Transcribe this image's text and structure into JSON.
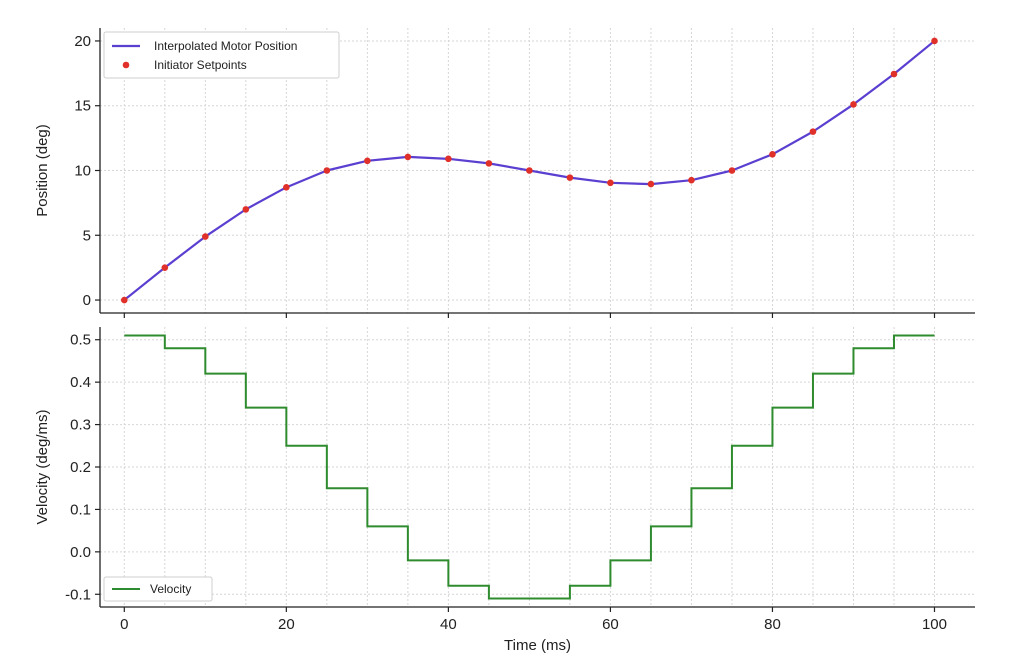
{
  "chart_data": [
    {
      "type": "line",
      "xlabel": "",
      "ylabel": "Position (deg)",
      "xlim": [
        -3,
        105
      ],
      "ylim": [
        -1,
        21
      ],
      "xticks": [
        0,
        20,
        40,
        60,
        80,
        100
      ],
      "yticks": [
        0,
        5,
        10,
        15,
        20
      ],
      "grid": true,
      "legend_position": "top-left",
      "series": [
        {
          "name": "Interpolated Motor Position",
          "kind": "line",
          "color": "#5b3fd0",
          "x": [
            0,
            5,
            10,
            15,
            20,
            25,
            30,
            35,
            40,
            45,
            50,
            55,
            60,
            65,
            70,
            75,
            80,
            85,
            90,
            95,
            100
          ],
          "y": [
            0,
            2.5,
            4.9,
            7.0,
            8.7,
            10.0,
            10.75,
            11.05,
            10.9,
            10.55,
            10.0,
            9.45,
            9.05,
            8.95,
            9.25,
            10.0,
            11.25,
            13.0,
            15.1,
            17.45,
            20.0
          ]
        },
        {
          "name": "Initiator Setpoints",
          "kind": "scatter",
          "color": "#e0302a",
          "x": [
            0,
            5,
            10,
            15,
            20,
            25,
            30,
            35,
            40,
            45,
            50,
            55,
            60,
            65,
            70,
            75,
            80,
            85,
            90,
            95,
            100
          ],
          "y": [
            0,
            2.5,
            4.9,
            7.0,
            8.7,
            10.0,
            10.75,
            11.05,
            10.9,
            10.55,
            10.0,
            9.45,
            9.05,
            8.95,
            9.25,
            10.0,
            11.25,
            13.0,
            15.1,
            17.45,
            20.0
          ]
        }
      ]
    },
    {
      "type": "line",
      "xlabel": "Time (ms)",
      "ylabel": "Velocity (deg/ms)",
      "xlim": [
        -3,
        105
      ],
      "ylim": [
        -0.13,
        0.53
      ],
      "xticks": [
        0,
        20,
        40,
        60,
        80,
        100
      ],
      "yticks": [
        -0.1,
        0.0,
        0.1,
        0.2,
        0.3,
        0.4,
        0.5
      ],
      "ytick_labels": [
        "-0.1",
        "0.0",
        "0.1",
        "0.2",
        "0.3",
        "0.4",
        "0.5"
      ],
      "grid": true,
      "legend_position": "bottom-left",
      "series": [
        {
          "name": "Velocity",
          "kind": "step",
          "color": "#2e8b2e",
          "x_edges": [
            0,
            5,
            10,
            15,
            20,
            25,
            30,
            35,
            40,
            45,
            50,
            55,
            60,
            65,
            70,
            75,
            80,
            85,
            90,
            95,
            100
          ],
          "values": [
            0.51,
            0.48,
            0.42,
            0.34,
            0.25,
            0.15,
            0.06,
            -0.02,
            -0.08,
            -0.11,
            -0.11,
            -0.08,
            -0.02,
            0.06,
            0.15,
            0.25,
            0.34,
            0.42,
            0.48,
            0.51
          ]
        }
      ]
    }
  ]
}
